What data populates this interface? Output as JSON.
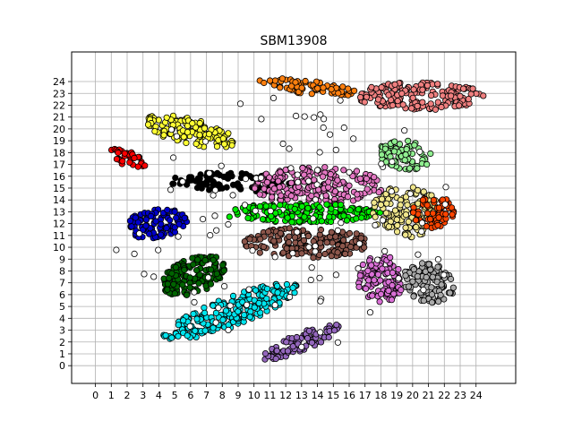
{
  "chart_data": {
    "type": "scatter",
    "title": "SBM13908",
    "xlabel": "",
    "ylabel": "",
    "xlim": [
      -1.5,
      26.5
    ],
    "ylim": [
      -1.5,
      26.5
    ],
    "grid": true,
    "xticks": [
      0,
      1,
      2,
      3,
      4,
      5,
      6,
      7,
      8,
      9,
      10,
      11,
      12,
      13,
      14,
      15,
      16,
      17,
      18,
      19,
      20,
      21,
      22,
      23,
      24
    ],
    "yticks": [
      0,
      1,
      2,
      3,
      4,
      5,
      6,
      7,
      8,
      9,
      10,
      11,
      12,
      13,
      14,
      15,
      16,
      17,
      18,
      19,
      20,
      21,
      22,
      23,
      24
    ],
    "point_style": "circle markers with black edges",
    "clusters": [
      {
        "color": "#ff0000",
        "center": [
          2.0,
          17.5
        ],
        "spread": [
          1.3,
          0.6
        ],
        "angle": -30,
        "count": 40
      },
      {
        "color": "#ffff33",
        "center": [
          6.0,
          19.8
        ],
        "spread": [
          3.0,
          1.1
        ],
        "angle": -18,
        "count": 130
      },
      {
        "color": "#ff7f0e",
        "center": [
          13.5,
          23.5
        ],
        "spread": [
          3.2,
          0.6
        ],
        "angle": -10,
        "count": 70
      },
      {
        "color": "#f08080",
        "center": [
          20.5,
          22.8
        ],
        "spread": [
          4.0,
          1.2
        ],
        "angle": 0,
        "count": 180
      },
      {
        "color": "#000000",
        "center": [
          8.5,
          15.5
        ],
        "spread": [
          4.0,
          0.8
        ],
        "angle": -3,
        "count": 90
      },
      {
        "color": "#0000cd",
        "center": [
          3.8,
          12.0
        ],
        "spread": [
          2.0,
          1.2
        ],
        "angle": 12,
        "count": 110
      },
      {
        "color": "#e377c2",
        "center": [
          14.0,
          15.2
        ],
        "spread": [
          4.2,
          1.6
        ],
        "angle": 0,
        "count": 200
      },
      {
        "color": "#00ee00",
        "center": [
          13.0,
          12.9
        ],
        "spread": [
          5.0,
          0.8
        ],
        "angle": 0,
        "count": 180
      },
      {
        "color": "#8c564b",
        "center": [
          13.3,
          10.4
        ],
        "spread": [
          4.0,
          1.3
        ],
        "angle": 0,
        "count": 170
      },
      {
        "color": "#90ee90",
        "center": [
          19.5,
          17.8
        ],
        "spread": [
          1.8,
          1.2
        ],
        "angle": -20,
        "count": 70
      },
      {
        "color": "#f0e68c",
        "center": [
          19.5,
          13.0
        ],
        "spread": [
          2.2,
          2.2
        ],
        "angle": 0,
        "count": 140
      },
      {
        "color": "#ff4500",
        "center": [
          21.3,
          13.0
        ],
        "spread": [
          1.3,
          1.4
        ],
        "angle": 0,
        "count": 60
      },
      {
        "color": "#006400",
        "center": [
          6.2,
          7.6
        ],
        "spread": [
          2.2,
          1.4
        ],
        "angle": 35,
        "count": 140
      },
      {
        "color": "#00e5ee",
        "center": [
          8.5,
          4.5
        ],
        "spread": [
          4.8,
          1.2
        ],
        "angle": 28,
        "count": 220
      },
      {
        "color": "#da70d6",
        "center": [
          18.0,
          7.3
        ],
        "spread": [
          1.5,
          2.0
        ],
        "angle": 0,
        "count": 110
      },
      {
        "color": "#a9a9a9",
        "center": [
          21.0,
          7.0
        ],
        "spread": [
          1.5,
          1.8
        ],
        "angle": 40,
        "count": 110
      },
      {
        "color": "#9467bd",
        "center": [
          13.0,
          2.0
        ],
        "spread": [
          2.8,
          0.7
        ],
        "angle": 30,
        "count": 80
      },
      {
        "color": "#ffffff",
        "center": [
          12.0,
          12.0
        ],
        "spread": [
          11.0,
          11.0
        ],
        "angle": 0,
        "count": 110
      }
    ]
  }
}
